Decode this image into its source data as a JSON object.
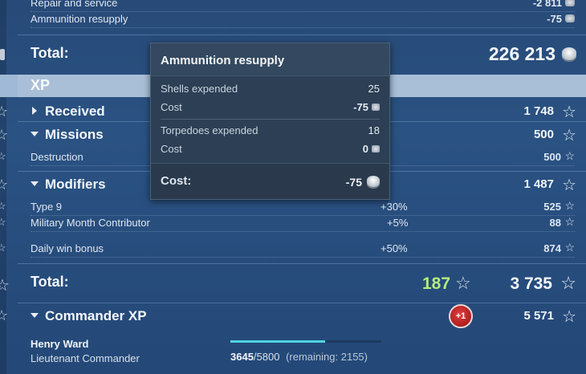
{
  "rows": {
    "repair_label": "Repair and service",
    "repair_value": "-2 811",
    "ammo_label": "Ammunition resupply",
    "ammo_value": "-75",
    "total_label": "Total:",
    "total_value": "226 213",
    "xp_header": "XP",
    "received_label": "Received",
    "received_value": "1 748",
    "missions_label": "Missions",
    "missions_value": "500",
    "destruction_label": "Destruction",
    "destruction_value": "500",
    "modifiers_label": "Modifiers",
    "modifiers_value": "1 487",
    "type9_label": "Type 9",
    "type9_pct": "+30%",
    "type9_value": "525",
    "military_label": "Military Month Contributor",
    "military_pct": "+5%",
    "military_value": "88",
    "daily_label": "Daily win bonus",
    "daily_pct": "+50%",
    "daily_value": "874",
    "xp_total_label": "Total:",
    "xp_total_green": "187",
    "xp_total_value": "3 735",
    "commander_label": "Commander XP",
    "commander_badge": "+1",
    "commander_value": "5 571",
    "commander_name": "Henry Ward",
    "commander_rank": "Lieutenant Commander",
    "commander_xp_current": "3645",
    "commander_xp_total": "/5800",
    "commander_remaining": "(remaining: 2155)",
    "commander_progress": 0.628
  },
  "tooltip": {
    "title": "Ammunition resupply",
    "shells_label": "Shells expended",
    "shells_value": "25",
    "cost1_label": "Cost",
    "cost1_value": "-75",
    "torpedoes_label": "Torpedoes expended",
    "torpedoes_value": "18",
    "cost2_label": "Cost",
    "cost2_value": "0",
    "total_label": "Cost:",
    "total_value": "-75"
  },
  "colors": {
    "green": "#b4ec7c",
    "badge": "#c82020",
    "progress": "#4fd3e0"
  }
}
